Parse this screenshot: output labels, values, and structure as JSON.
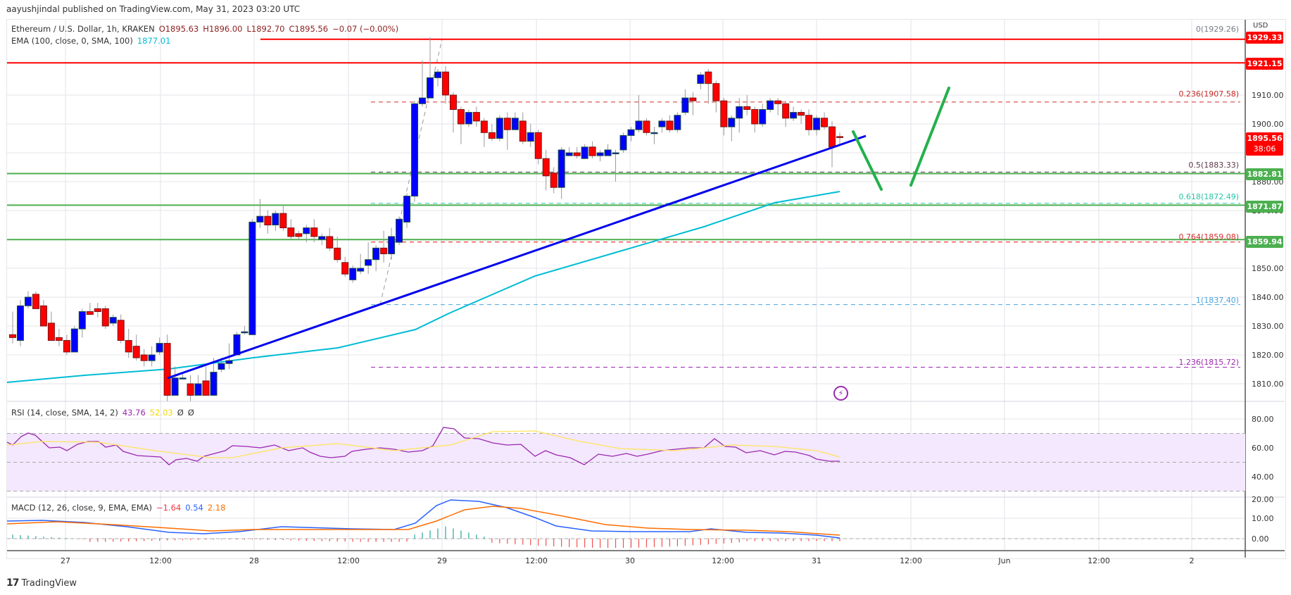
{
  "header": {
    "published": "aayushjindal published on TradingView.com, May 31, 2023 03:20 UTC"
  },
  "legend": {
    "symbol": "Ethereum / U.S. Dollar, 1h, KRAKEN",
    "open": "O1895.63",
    "high": "H1896.00",
    "low": "L1892.70",
    "close": "C1895.56",
    "change": "−0.07 (−0.00%)",
    "ema_label": "EMA (100, close, 0, SMA, 100)",
    "ema_value": "1877.01",
    "rsi_label": "RSI (14, close, SMA, 14, 2)",
    "rsi_value": "43.76",
    "rsi_sma": "52.03",
    "rsi_na1": "Ø",
    "rsi_na2": "Ø",
    "macd_label": "MACD (12, 26, close, 9, EMA, EMA)",
    "macd_hist": "−1.64",
    "macd_line": "0.54",
    "macd_signal": "2.18"
  },
  "price_axis": {
    "currency": "USD",
    "ticks": [
      "1910.00",
      "1900.00",
      "1890.00",
      "1880.00",
      "1870.00",
      "1850.00",
      "1840.00",
      "1830.00",
      "1820.00",
      "1810.00"
    ],
    "rsi_ticks": [
      "80.00",
      "60.00",
      "40.00",
      "20.00"
    ],
    "macd_ticks": [
      "10.00",
      "0.00"
    ],
    "tags": {
      "high_line": "1929.33",
      "resistance": "1921.15",
      "last_price": "1895.56",
      "countdown": "38:06",
      "support_1": "1882.81",
      "support_2": "1871.87",
      "support_3": "1859.94"
    }
  },
  "fib_labels": {
    "f0": "0(1929.26)",
    "f236": "0.236(1907.58)",
    "f5": "0.5(1883.33)",
    "f618": "0.618(1872.49)",
    "f764": "0.764(1859.08)",
    "f1": "1(1837.40)",
    "f1236": "1.236(1815.72)"
  },
  "time_axis": [
    "27",
    "12:00",
    "28",
    "12:00",
    "29",
    "12:00",
    "30",
    "12:00",
    "31",
    "12:00",
    "Jun",
    "12:00",
    "2"
  ],
  "footer": {
    "brand": "TradingView",
    "logo_glyph": "17"
  },
  "colors": {
    "up": "#0000ff",
    "down": "#ff0000",
    "ema": "#00bcd4",
    "trendline": "#0000ee",
    "support": "#4caf50",
    "resistance": "#ff0000",
    "rsi": "#9c27b0",
    "rsi_sma": "#ffeb3b",
    "macd": "#2962ff",
    "signal": "#ff6d00"
  },
  "chart_data": {
    "type": "candlestick",
    "title": "Ethereum / U.S. Dollar, 1h, KRAKEN",
    "ylabel": "USD",
    "ylim": [
      1805,
      1932
    ],
    "x_ticks": [
      "27",
      "12:00",
      "28",
      "12:00",
      "29",
      "12:00",
      "30",
      "12:00",
      "31",
      "12:00",
      "Jun",
      "12:00",
      "2"
    ],
    "last": {
      "open": 1895.63,
      "high": 1896.0,
      "low": 1892.7,
      "close": 1895.56
    },
    "candles": [
      [
        1827,
        1834,
        1826,
        1824
      ],
      [
        1825,
        1838,
        1837,
        1823
      ],
      [
        1837,
        1841,
        1840,
        1836
      ],
      [
        1841,
        1841,
        1836,
        1839
      ],
      [
        1837,
        1838,
        1830,
        1831
      ],
      [
        1831,
        1834,
        1825,
        1825
      ],
      [
        1826,
        1828,
        1825,
        1823
      ],
      [
        1825,
        1826,
        1821,
        1820
      ],
      [
        1821,
        1828,
        1829,
        1821
      ],
      [
        1829,
        1832,
        1835,
        1826
      ],
      [
        1835,
        1837,
        1834,
        1834
      ],
      [
        1836,
        1837,
        1835,
        1833
      ],
      [
        1836,
        1836,
        1830,
        1829
      ],
      [
        1831,
        1833,
        1833,
        1830
      ],
      [
        1832,
        1833,
        1825,
        1824
      ],
      [
        1825,
        1828,
        1821,
        1819
      ],
      [
        1823,
        1826,
        1819,
        1818
      ],
      [
        1820,
        1821,
        1818,
        1816
      ],
      [
        1818,
        1822,
        1820,
        1816
      ],
      [
        1821,
        1825,
        1824,
        1820
      ],
      [
        1824,
        1826,
        1806,
        1804
      ],
      [
        1806,
        1815,
        1812,
        1806
      ],
      [
        1812,
        1813,
        1812,
        1812
      ],
      [
        1810,
        1812,
        1806,
        1804
      ],
      [
        1806,
        1812,
        1810,
        1807
      ],
      [
        1811,
        1815,
        1806,
        1806
      ],
      [
        1806,
        1818,
        1814,
        1806
      ],
      [
        1815,
        1818,
        1817,
        1814
      ],
      [
        1817,
        1823,
        1818,
        1815
      ],
      [
        1820,
        1824,
        1827,
        1820
      ],
      [
        1828,
        1829,
        1828,
        1827
      ],
      [
        1827,
        1849,
        1866,
        1827
      ],
      [
        1866,
        1873,
        1868,
        1864
      ],
      [
        1868,
        1869,
        1865,
        1862
      ],
      [
        1865,
        1868,
        1869,
        1863
      ],
      [
        1869,
        1871,
        1864,
        1863
      ],
      [
        1864,
        1866,
        1861,
        1860
      ],
      [
        1862,
        1862,
        1861,
        1860
      ],
      [
        1862,
        1863,
        1864,
        1859
      ],
      [
        1864,
        1866,
        1861,
        1859
      ],
      [
        1860,
        1860,
        1861,
        1858
      ],
      [
        1861,
        1863,
        1857,
        1856
      ],
      [
        1857,
        1860,
        1853,
        1852
      ],
      [
        1852,
        1853,
        1848,
        1847
      ],
      [
        1846,
        1847,
        1850,
        1845
      ],
      [
        1849,
        1854,
        1850,
        1848
      ],
      [
        1851,
        1858,
        1853,
        1848
      ],
      [
        1853,
        1856,
        1857,
        1849
      ],
      [
        1857,
        1862,
        1855,
        1852
      ],
      [
        1855,
        1863,
        1861,
        1853
      ],
      [
        1859,
        1866,
        1867,
        1858
      ],
      [
        1866,
        1872,
        1875,
        1864
      ],
      [
        1875,
        1906,
        1907,
        1873
      ],
      [
        1907,
        1921,
        1909,
        1906
      ],
      [
        1909,
        1929,
        1916,
        1909
      ],
      [
        1916,
        1918,
        1918,
        1913
      ],
      [
        1918,
        1919,
        1910,
        1907
      ],
      [
        1910,
        1909,
        1905,
        1897
      ],
      [
        1905,
        1904,
        1900,
        1893
      ],
      [
        1900,
        1902,
        1904,
        1899
      ],
      [
        1904,
        1905,
        1901,
        1899
      ],
      [
        1901,
        1900,
        1897,
        1892
      ],
      [
        1897,
        1899,
        1895,
        1894
      ],
      [
        1895,
        1902,
        1902,
        1894
      ],
      [
        1902,
        1903,
        1898,
        1891
      ],
      [
        1898,
        1903,
        1902,
        1899
      ],
      [
        1901,
        1903,
        1894,
        1893
      ],
      [
        1894,
        1899,
        1897,
        1892
      ],
      [
        1897,
        1896,
        1888,
        1886
      ],
      [
        1888,
        1890,
        1882,
        1877
      ],
      [
        1883,
        1884,
        1878,
        1876
      ],
      [
        1878,
        1883,
        1891,
        1874
      ],
      [
        1889,
        1891,
        1890,
        1889
      ],
      [
        1890,
        1891,
        1889,
        1888
      ],
      [
        1888,
        1892,
        1892,
        1888
      ],
      [
        1892,
        1893,
        1889,
        1888
      ],
      [
        1889,
        1889,
        1890,
        1887
      ],
      [
        1889,
        1892,
        1891,
        1889
      ],
      [
        1890,
        1890,
        1890,
        1880
      ],
      [
        1891,
        1896,
        1896,
        1890
      ],
      [
        1896,
        1898,
        1898,
        1894
      ],
      [
        1898,
        1909,
        1901,
        1897
      ],
      [
        1901,
        1900,
        1897,
        1896
      ],
      [
        1897,
        1898,
        1897,
        1893
      ],
      [
        1899,
        1901,
        1901,
        1897
      ],
      [
        1901,
        1902,
        1898,
        1897
      ],
      [
        1898,
        1902,
        1903,
        1897
      ],
      [
        1904,
        1911,
        1909,
        1903
      ],
      [
        1909,
        1910,
        1908,
        1903
      ],
      [
        1914,
        1917,
        1917,
        1912
      ],
      [
        1918,
        1918,
        1914,
        1907
      ],
      [
        1914,
        1911,
        1908,
        1904
      ],
      [
        1908,
        1905,
        1899,
        1896
      ],
      [
        1899,
        1895,
        1902,
        1894
      ],
      [
        1902,
        1908,
        1906,
        1897
      ],
      [
        1906,
        1909,
        1905,
        1903
      ],
      [
        1905,
        1905,
        1900,
        1897
      ],
      [
        1900,
        1906,
        1905,
        1899
      ],
      [
        1905,
        1906,
        1908,
        1904
      ],
      [
        1908,
        1908,
        1907,
        1903
      ],
      [
        1907,
        1907,
        1902,
        1899
      ],
      [
        1902,
        1905,
        1904,
        1901
      ],
      [
        1904,
        1904,
        1903,
        1900
      ],
      [
        1903,
        1904,
        1898,
        1896
      ],
      [
        1898,
        1898,
        1902,
        1896
      ],
      [
        1902,
        1903,
        1899,
        1898
      ],
      [
        1899,
        1900,
        1892,
        1885
      ],
      [
        1895.63,
        1896,
        1895.56,
        1892.7
      ]
    ],
    "ema100": [
      [
        0,
        1813
      ],
      [
        120,
        1818
      ],
      [
        240,
        1821
      ],
      [
        360,
        1824
      ],
      [
        480,
        1828
      ],
      [
        580,
        1830
      ],
      [
        640,
        1838
      ],
      [
        760,
        1848
      ],
      [
        880,
        1856
      ],
      [
        1000,
        1863
      ],
      [
        1100,
        1870
      ],
      [
        1193,
        1877
      ]
    ],
    "horizontal_lines": [
      {
        "price": 1929.33,
        "color": "#ff0000",
        "label": "1929.33"
      },
      {
        "price": 1921.15,
        "color": "#ff0000",
        "label": "1921.15"
      },
      {
        "price": 1882.81,
        "color": "#4caf50",
        "label": "1882.81"
      },
      {
        "price": 1871.87,
        "color": "#4caf50",
        "label": "1871.87"
      },
      {
        "price": 1859.94,
        "color": "#4caf50",
        "label": "1859.94"
      }
    ],
    "fibonacci": [
      {
        "level": 0,
        "price": 1929.26
      },
      {
        "level": 0.236,
        "price": 1907.58
      },
      {
        "level": 0.5,
        "price": 1883.33
      },
      {
        "level": 0.618,
        "price": 1872.49
      },
      {
        "level": 0.764,
        "price": 1859.08
      },
      {
        "level": 1,
        "price": 1837.4
      },
      {
        "level": 1.236,
        "price": 1815.72
      }
    ],
    "trendline": {
      "from": {
        "x": "27 14:00",
        "price": 1814
      },
      "to": {
        "x": "31 06:00",
        "price": 1895
      }
    },
    "annotations": [
      "Bearish move down to trendline / 1882 support",
      "Bullish rebound arrow toward 1910"
    ],
    "rsi": {
      "ylim": [
        20,
        90
      ],
      "bands": [
        30,
        70
      ],
      "last": 43.76,
      "sma_last": 52.03
    },
    "macd": {
      "ylim": [
        -3,
        20
      ],
      "macd_last": 0.54,
      "signal_last": 2.18,
      "hist_last": -1.64
    }
  }
}
